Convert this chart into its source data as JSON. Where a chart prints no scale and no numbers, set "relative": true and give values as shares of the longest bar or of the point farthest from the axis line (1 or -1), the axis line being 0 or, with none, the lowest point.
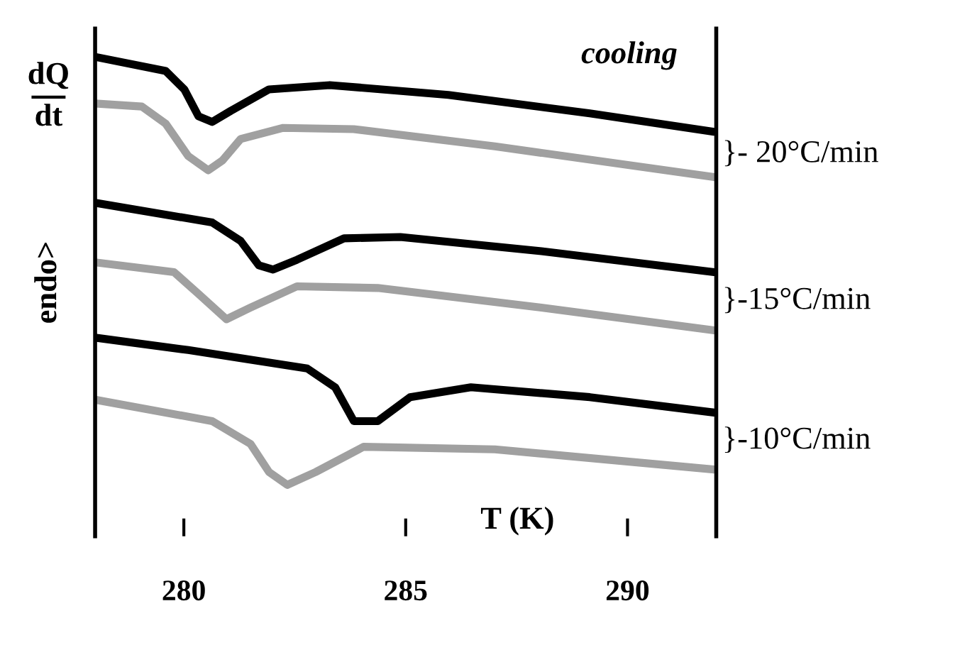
{
  "chart_data": {
    "type": "line",
    "relative": true,
    "title": "cooling",
    "xlabel": "T (K)",
    "ylabel": "endo>",
    "annotations": [
      "dQ\ndt"
    ],
    "xlim": [
      278,
      292
    ],
    "xticks": [
      280,
      285,
      290
    ],
    "grid": false,
    "legend": false,
    "series": [
      {
        "name": "}- 20°C/min",
        "color": "#000000",
        "x": [
          278.0,
          279.59,
          280.01,
          280.33,
          280.64,
          281.06,
          281.92,
          283.29,
          285.96,
          289.15,
          291.95
        ],
        "values": [
          1.0,
          0.967,
          0.924,
          0.861,
          0.848,
          0.874,
          0.924,
          0.934,
          0.911,
          0.868,
          0.825
        ]
      },
      {
        "color": "#a0a0a0",
        "x": [
          278.0,
          279.05,
          279.59,
          280.1,
          280.55,
          280.87,
          281.28,
          282.24,
          283.83,
          287.01,
          291.95
        ],
        "values": [
          0.891,
          0.884,
          0.844,
          0.768,
          0.735,
          0.758,
          0.808,
          0.834,
          0.831,
          0.791,
          0.719
        ]
      },
      {
        "name": "}-15°C/min",
        "color": "#000000",
        "x": [
          278.0,
          280.64,
          281.28,
          281.69,
          282.01,
          282.55,
          283.61,
          284.88,
          288.06,
          291.95
        ],
        "values": [
          0.659,
          0.613,
          0.57,
          0.513,
          0.503,
          0.526,
          0.576,
          0.579,
          0.546,
          0.497
        ]
      },
      {
        "color": "#a0a0a0",
        "x": [
          278.0,
          279.78,
          280.32,
          280.96,
          281.5,
          282.55,
          284.37,
          288.06,
          291.95
        ],
        "values": [
          0.52,
          0.497,
          0.447,
          0.387,
          0.414,
          0.464,
          0.46,
          0.414,
          0.361
        ]
      },
      {
        "name": "}-10°C/min",
        "color": "#000000",
        "x": [
          278.0,
          280.1,
          282.78,
          283.41,
          283.83,
          284.37,
          285.1,
          286.47,
          289.15,
          291.95
        ],
        "values": [
          0.344,
          0.315,
          0.272,
          0.228,
          0.149,
          0.149,
          0.205,
          0.228,
          0.205,
          0.169
        ]
      },
      {
        "color": "#a0a0a0",
        "x": [
          278.0,
          280.64,
          281.5,
          281.92,
          282.33,
          282.97,
          284.05,
          287.01,
          291.95
        ],
        "values": [
          0.199,
          0.149,
          0.096,
          0.03,
          0.0,
          0.03,
          0.089,
          0.083,
          0.036
        ]
      }
    ]
  }
}
